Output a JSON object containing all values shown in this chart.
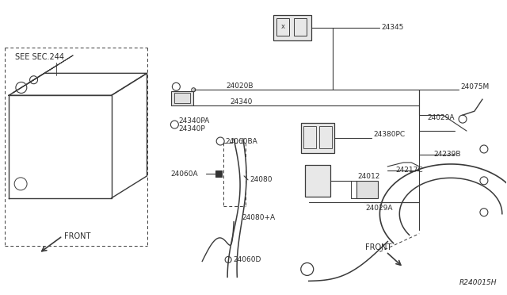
{
  "bg_color": "#ffffff",
  "line_color": "#3a3a3a",
  "text_color": "#2a2a2a",
  "fig_width": 6.4,
  "fig_height": 3.72,
  "ref_code": "R240015H",
  "see_sec": "SEE SEC.244",
  "front_text": "FRONT"
}
